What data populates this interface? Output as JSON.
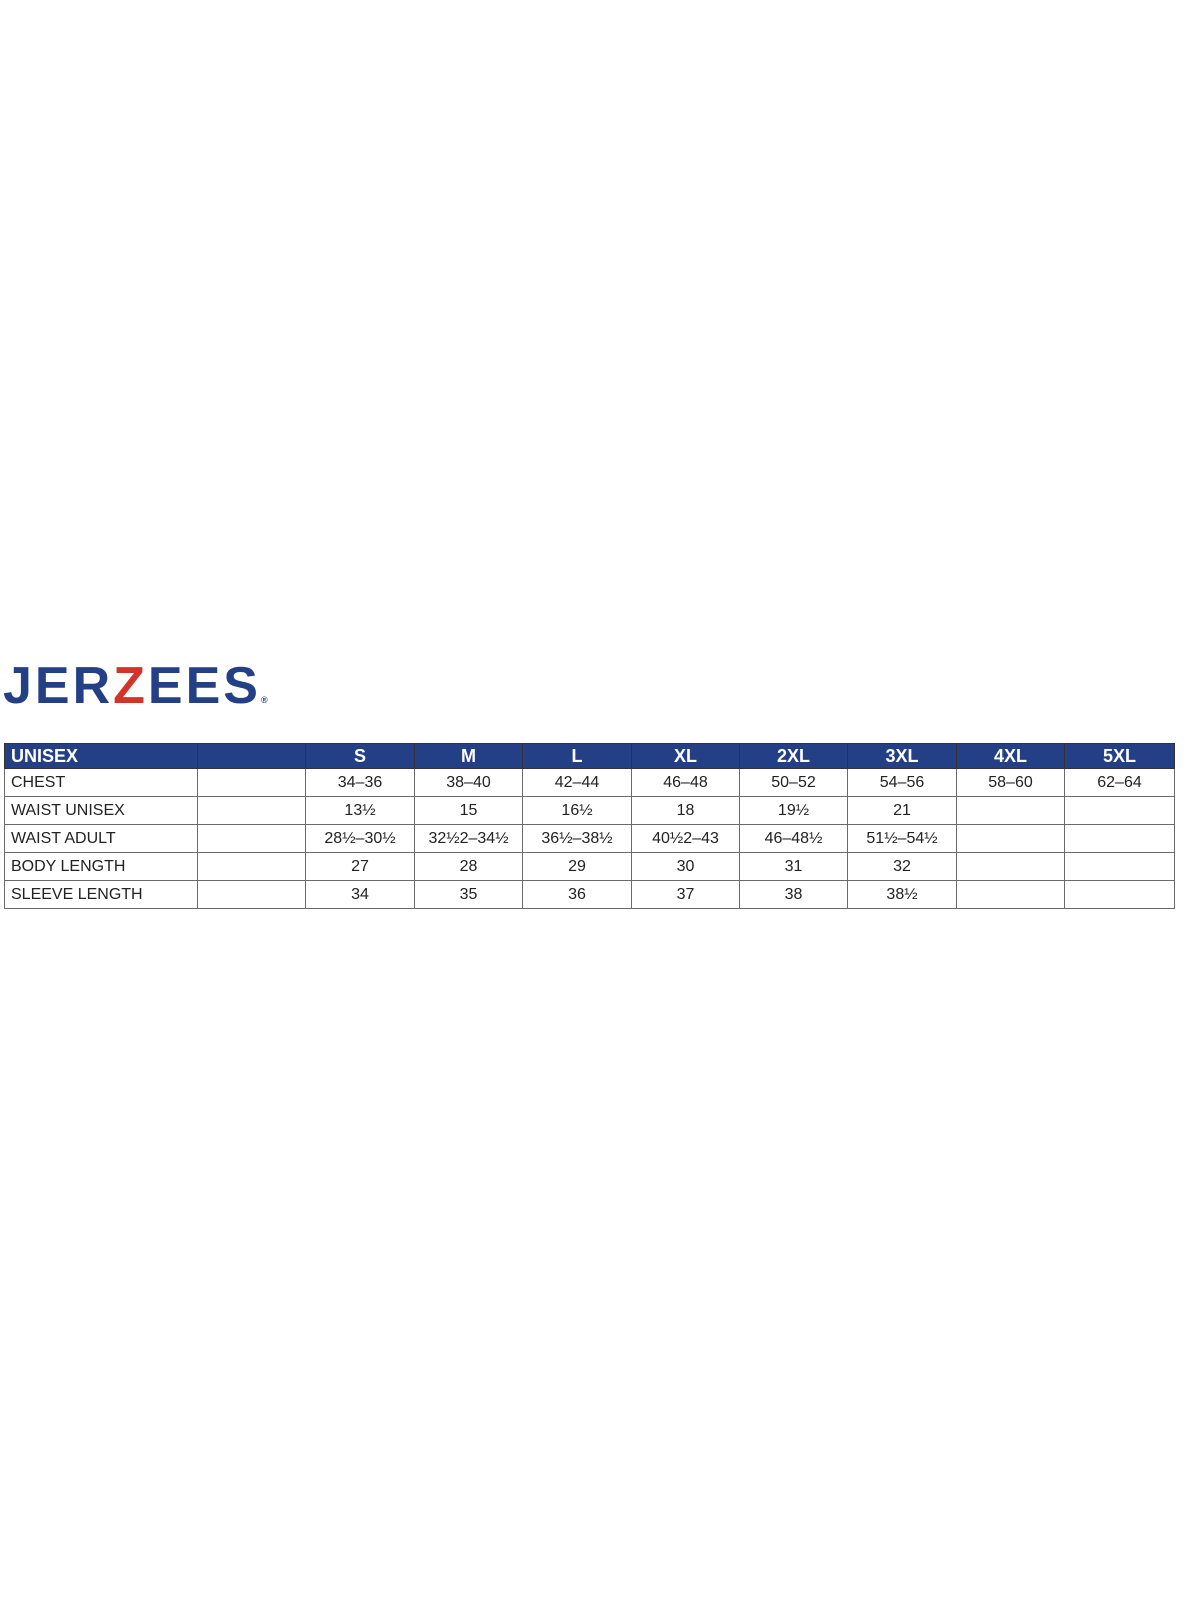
{
  "logo": {
    "text_before": "JER",
    "text_accent": "Z",
    "text_after": "EES",
    "registered": "®",
    "colors": {
      "blue": "#233f85",
      "red": "#d2342a"
    }
  },
  "table": {
    "header": [
      "UNISEX",
      "",
      "S",
      "M",
      "L",
      "XL",
      "2XL",
      "3XL",
      "4XL",
      "5XL"
    ],
    "rows": [
      {
        "label": "CHEST",
        "values": [
          "34–36",
          "38–40",
          "42–44",
          "46–48",
          "50–52",
          "54–56",
          "58–60",
          "62–64"
        ]
      },
      {
        "label": "WAIST UNISEX",
        "values": [
          "13½",
          "15",
          "16½",
          "18",
          "19½",
          "21",
          "",
          ""
        ]
      },
      {
        "label": "WAIST ADULT",
        "values": [
          "28½–30½",
          "32½2–34½",
          "36½–38½",
          "40½2–43",
          "46–48½",
          "51½–54½",
          "",
          ""
        ]
      },
      {
        "label": "BODY LENGTH",
        "values": [
          "27",
          "28",
          "29",
          "30",
          "31",
          "32",
          "",
          ""
        ]
      },
      {
        "label": "SLEEVE LENGTH",
        "values": [
          "34",
          "35",
          "36",
          "37",
          "38",
          "38½",
          "",
          ""
        ]
      }
    ]
  }
}
